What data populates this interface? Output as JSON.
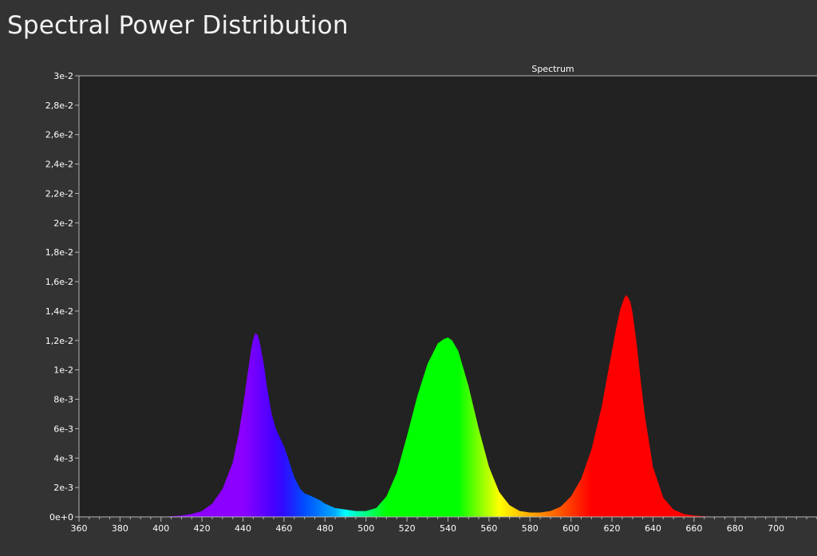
{
  "page": {
    "title": "Spectral Power Distribution"
  },
  "chart_data": {
    "type": "area",
    "title": "Spectrum",
    "xlabel": "",
    "ylabel": "",
    "xlim": [
      360,
      720
    ],
    "ylim": [
      0,
      0.03
    ],
    "grid": false,
    "x_ticks": [
      {
        "value": 360,
        "label": "360"
      },
      {
        "value": 380,
        "label": "380"
      },
      {
        "value": 400,
        "label": "400"
      },
      {
        "value": 420,
        "label": "420"
      },
      {
        "value": 440,
        "label": "440"
      },
      {
        "value": 460,
        "label": "460"
      },
      {
        "value": 480,
        "label": "480"
      },
      {
        "value": 500,
        "label": "500"
      },
      {
        "value": 520,
        "label": "520"
      },
      {
        "value": 540,
        "label": "540"
      },
      {
        "value": 560,
        "label": "560"
      },
      {
        "value": 580,
        "label": "580"
      },
      {
        "value": 600,
        "label": "600"
      },
      {
        "value": 620,
        "label": "620"
      },
      {
        "value": 640,
        "label": "640"
      },
      {
        "value": 660,
        "label": "660"
      },
      {
        "value": 680,
        "label": "680"
      },
      {
        "value": 700,
        "label": "700"
      }
    ],
    "y_ticks": [
      {
        "value": 0,
        "label": "0e+0"
      },
      {
        "value": 0.002,
        "label": "2e-3"
      },
      {
        "value": 0.004,
        "label": "4e-3"
      },
      {
        "value": 0.006,
        "label": "6e-3"
      },
      {
        "value": 0.008,
        "label": "8e-3"
      },
      {
        "value": 0.01,
        "label": "1e-2"
      },
      {
        "value": 0.012,
        "label": "1,2e-2"
      },
      {
        "value": 0.014,
        "label": "1,4e-2"
      },
      {
        "value": 0.016,
        "label": "1,6e-2"
      },
      {
        "value": 0.018,
        "label": "1,8e-2"
      },
      {
        "value": 0.02,
        "label": "2e-2"
      },
      {
        "value": 0.022,
        "label": "2,2e-2"
      },
      {
        "value": 0.024,
        "label": "2,4e-2"
      },
      {
        "value": 0.026,
        "label": "2,6e-2"
      },
      {
        "value": 0.028,
        "label": "2,8e-2"
      },
      {
        "value": 0.03,
        "label": "3e-2"
      }
    ],
    "series": [
      {
        "x": [
          400,
          410,
          415,
          420,
          425,
          430,
          435,
          438,
          440,
          442,
          444,
          445,
          446,
          447,
          448,
          450,
          452,
          454,
          456,
          458,
          460,
          462,
          465,
          468,
          470,
          472,
          475,
          478,
          480,
          485,
          490,
          495,
          500,
          505,
          510,
          515,
          520,
          525,
          530,
          535,
          538,
          540,
          542,
          545,
          550,
          555,
          560,
          565,
          570,
          575,
          580,
          585,
          590,
          595,
          600,
          605,
          610,
          615,
          618,
          620,
          622,
          624,
          626,
          627,
          628,
          629,
          630,
          632,
          634,
          636,
          640,
          645,
          650,
          655,
          660,
          670,
          680,
          690,
          700,
          710,
          720
        ],
        "y": [
          0,
          0.0001,
          0.0002,
          0.0004,
          0.0009,
          0.0019,
          0.0037,
          0.0057,
          0.0075,
          0.0095,
          0.0114,
          0.0121,
          0.0125,
          0.0124,
          0.012,
          0.0105,
          0.0086,
          0.007,
          0.006,
          0.0054,
          0.0048,
          0.004,
          0.0027,
          0.0019,
          0.0016,
          0.0015,
          0.0013,
          0.0011,
          0.0009,
          0.0006,
          0.0005,
          0.0004,
          0.0004,
          0.0006,
          0.0014,
          0.003,
          0.0055,
          0.0082,
          0.0104,
          0.0118,
          0.0121,
          0.0122,
          0.012,
          0.0113,
          0.0089,
          0.006,
          0.0034,
          0.0017,
          0.0008,
          0.0004,
          0.0003,
          0.0003,
          0.0004,
          0.0007,
          0.0014,
          0.0026,
          0.0046,
          0.0075,
          0.0098,
          0.0113,
          0.0128,
          0.0141,
          0.0149,
          0.0151,
          0.0149,
          0.0146,
          0.0139,
          0.0118,
          0.0093,
          0.0069,
          0.0034,
          0.0013,
          0.0005,
          0.0002,
          0.0001,
          0,
          0,
          0,
          0,
          0,
          0
        ]
      }
    ]
  },
  "colors": {
    "background": "#333333",
    "plot_background": "#222222",
    "axis": "#b4b4b4",
    "text": "#ffffff"
  }
}
